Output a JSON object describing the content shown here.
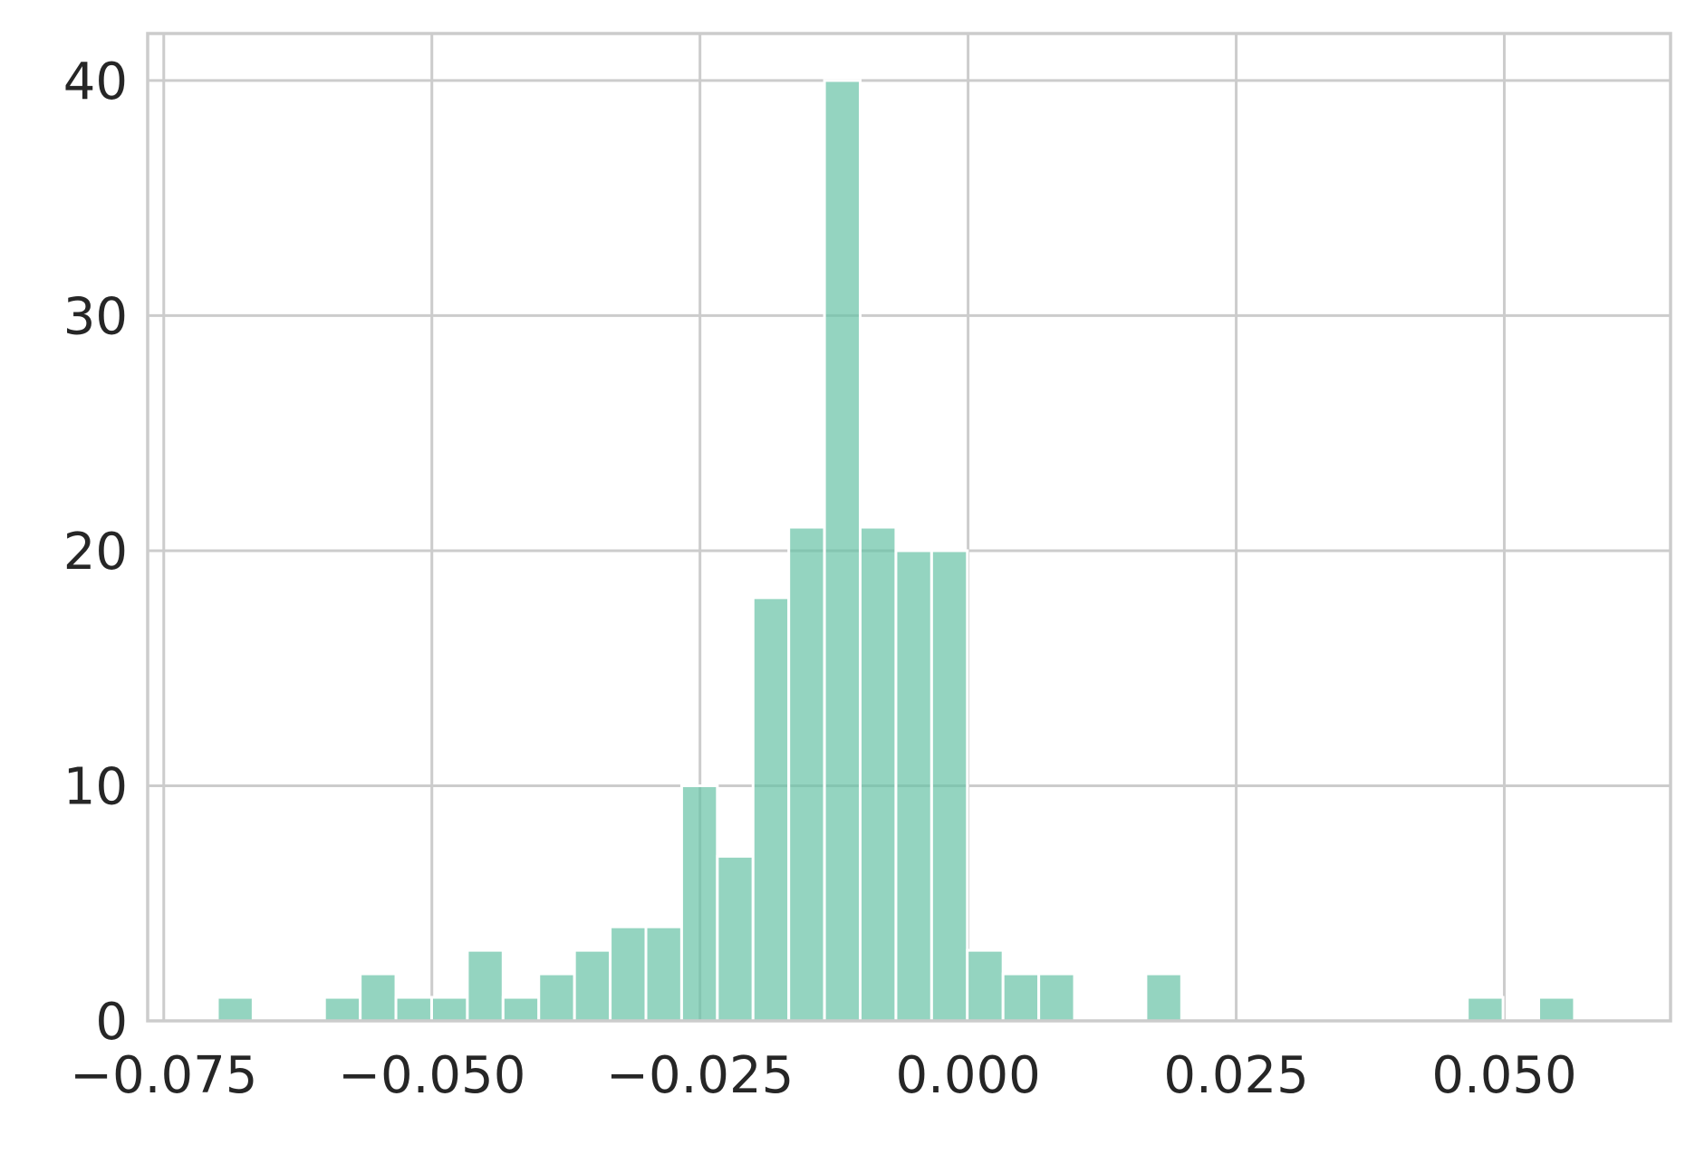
{
  "chart_data": {
    "type": "bar",
    "subtype": "histogram",
    "title": "",
    "xlabel": "",
    "ylabel": "",
    "xlim": [
      -0.0765,
      0.0655
    ],
    "ylim": [
      0,
      42
    ],
    "grid": true,
    "x_ticks": [
      -0.075,
      -0.05,
      -0.025,
      0.0,
      0.025,
      0.05
    ],
    "x_tick_labels": [
      "−0.075",
      "−0.050",
      "−0.025",
      "0.000",
      "0.025",
      "0.050"
    ],
    "y_ticks": [
      0,
      10,
      20,
      30,
      40
    ],
    "y_tick_labels": [
      "0",
      "10",
      "20",
      "30",
      "40"
    ],
    "bin_start": -0.07,
    "bin_width": 0.00333,
    "values": [
      1,
      0,
      0,
      1,
      2,
      1,
      1,
      3,
      1,
      2,
      3,
      4,
      4,
      10,
      7,
      18,
      21,
      40,
      21,
      20,
      20,
      3,
      2,
      2,
      0,
      0,
      2,
      0,
      0,
      0,
      0,
      0,
      0,
      0,
      0,
      1,
      0,
      1
    ],
    "colors": {
      "bar_fill": "#66c2a5",
      "bar_opacity": 0.7,
      "bar_edge": "#ffffff",
      "grid": "#cccccc",
      "axis_text": "#262626",
      "background": "#ffffff"
    }
  }
}
